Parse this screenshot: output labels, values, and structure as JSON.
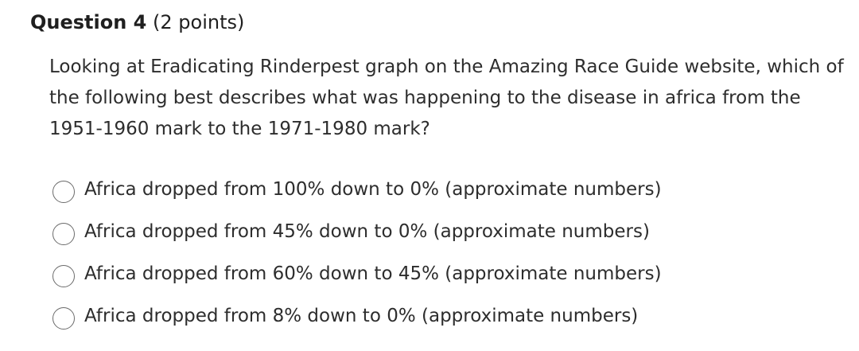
{
  "question": {
    "title": "Question 4",
    "points": "(2 points)",
    "text": "Looking at Eradicating Rinderpest graph on the Amazing Race Guide website, which of the following best describes what was happening to the disease in africa from the 1951-1960 mark to the 1971-1980 mark?"
  },
  "options": [
    {
      "label": "Africa dropped from 100% down to 0% (approximate numbers)",
      "selected": false
    },
    {
      "label": "Africa dropped from 45% down to 0% (approximate numbers)",
      "selected": false
    },
    {
      "label": "Africa dropped from 60% down to 45% (approximate numbers)",
      "selected": false
    },
    {
      "label": "Africa dropped from 8% down to 0% (approximate numbers)",
      "selected": false
    }
  ]
}
